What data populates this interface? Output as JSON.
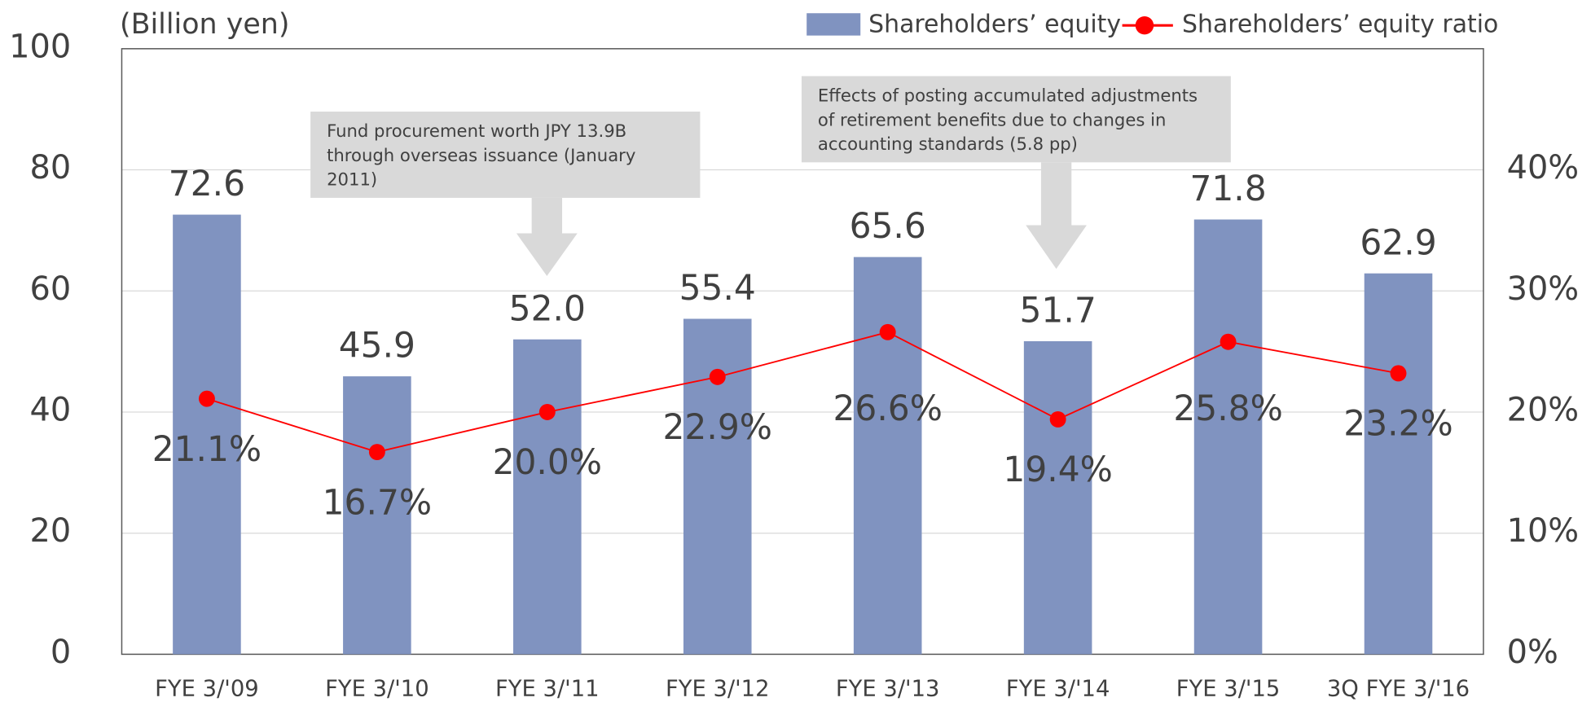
{
  "chart_data": {
    "type": "bar",
    "y_label": "(Billion yen)",
    "categories": [
      "FYE 3/'09",
      "FYE 3/'10",
      "FYE 3/'11",
      "FYE 3/'12",
      "FYE 3/'13",
      "FYE 3/'14",
      "FYE 3/'15",
      "3Q FYE 3/'16"
    ],
    "series": [
      {
        "name": "Shareholders’ equity",
        "type": "bar",
        "color": "#8093c0",
        "values": [
          72.6,
          45.9,
          52,
          55.4,
          65.6,
          51.7,
          71.8,
          62.9
        ],
        "value_labels": [
          "72.6",
          "45.9",
          "52.0",
          "55.4",
          "65.6",
          "51.7",
          "71.8",
          "62.9"
        ]
      },
      {
        "name": "Shareholders’ equity ratio",
        "type": "line",
        "axis": "y2",
        "color": "#ff0000",
        "values": [
          21.1,
          16.7,
          20,
          22.9,
          26.6,
          19.4,
          25.8,
          23.2
        ],
        "value_labels": [
          "21.1%",
          "16.7%",
          "20.0%",
          "22.9%",
          "26.6%",
          "19.4%",
          "25.8%",
          "23.2%"
        ]
      }
    ],
    "ylim": [
      0,
      100
    ],
    "yticks": [
      0,
      20,
      40,
      60,
      80,
      100
    ],
    "y2lim": [
      0,
      50
    ],
    "y2ticks": [
      {
        "value": 0,
        "label": "0%"
      },
      {
        "value": 10,
        "label": "10%"
      },
      {
        "value": 20,
        "label": "20%"
      },
      {
        "value": 30,
        "label": "30%"
      },
      {
        "value": 40,
        "label": "40%"
      }
    ],
    "grid": true,
    "legend": "top-right",
    "annotations": [
      {
        "lines": [
          "Fund procurement worth JPY 13.9B",
          "through overseas issuance (January",
          "2011)"
        ]
      },
      {
        "lines": [
          "Effects of posting accumulated adjustments",
          "of retirement benefits due to changes in",
          "accounting standards (5.8 pp)"
        ]
      }
    ]
  }
}
